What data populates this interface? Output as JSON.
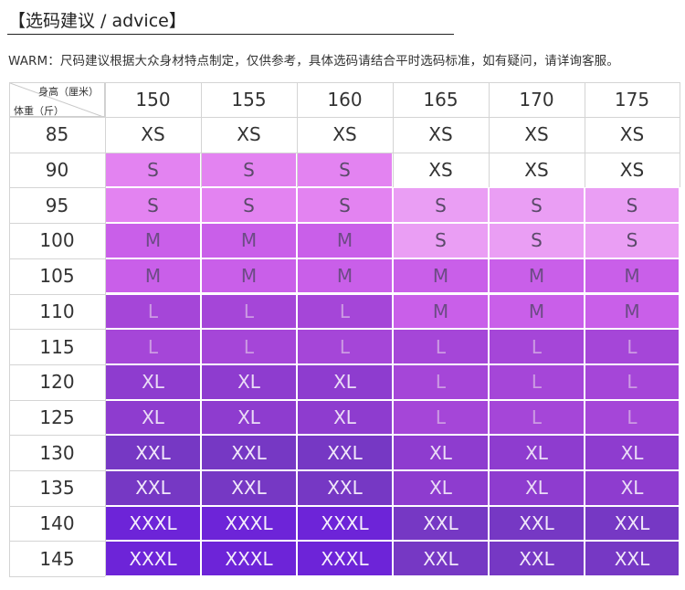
{
  "title": "【选码建议 / advice】",
  "note": "WARM：尺码建议根据大众身材特点制定，仅供参考，具体选码请结合平时选码标准，如有疑问，请详询客服。",
  "table": {
    "corner_height_label": "身高（厘米）",
    "corner_weight_label": "体重（斤）",
    "heights": [
      "150",
      "155",
      "160",
      "165",
      "170",
      "175"
    ],
    "rows": [
      {
        "weight": "85",
        "sizes": [
          "XS",
          "XS",
          "XS",
          "XS",
          "XS",
          "XS"
        ]
      },
      {
        "weight": "90",
        "sizes": [
          "S",
          "S",
          "S",
          "XS",
          "XS",
          "XS"
        ]
      },
      {
        "weight": "95",
        "sizes": [
          "S",
          "S",
          "S",
          "S",
          "S",
          "S"
        ]
      },
      {
        "weight": "100",
        "sizes": [
          "M",
          "M",
          "M",
          "S",
          "S",
          "S"
        ]
      },
      {
        "weight": "105",
        "sizes": [
          "M",
          "M",
          "M",
          "M",
          "M",
          "M"
        ]
      },
      {
        "weight": "110",
        "sizes": [
          "L",
          "L",
          "L",
          "M",
          "M",
          "M"
        ]
      },
      {
        "weight": "115",
        "sizes": [
          "L",
          "L",
          "L",
          "L",
          "L",
          "L"
        ]
      },
      {
        "weight": "120",
        "sizes": [
          "XL",
          "XL",
          "XL",
          "L",
          "L",
          "L"
        ]
      },
      {
        "weight": "125",
        "sizes": [
          "XL",
          "XL",
          "XL",
          "L",
          "L",
          "L"
        ]
      },
      {
        "weight": "130",
        "sizes": [
          "XXL",
          "XXL",
          "XXL",
          "XL",
          "XL",
          "XL"
        ]
      },
      {
        "weight": "135",
        "sizes": [
          "XXL",
          "XXL",
          "XXL",
          "XL",
          "XL",
          "XL"
        ]
      },
      {
        "weight": "140",
        "sizes": [
          "XXXL",
          "XXXL",
          "XXXL",
          "XXL",
          "XXL",
          "XXL"
        ]
      },
      {
        "weight": "145",
        "sizes": [
          "XXXL",
          "XXXL",
          "XXXL",
          "XXL",
          "XXL",
          "XXL"
        ]
      }
    ]
  },
  "colors": {
    "XS": {
      "bg": "#ffffff",
      "fg": "#333333"
    },
    "S": {
      "bg": "#e383f1",
      "fg": "#5b4a6a"
    },
    "M": {
      "bg": "#c95fe9",
      "fg": "#6c4b85"
    },
    "L": {
      "bg": "#a546d8",
      "fg": "#cc9be3"
    },
    "XL": {
      "bg": "#8e3ccf",
      "fg": "#eadcf6"
    },
    "XXL": {
      "bg": "#7638c4",
      "fg": "#f1e8fa"
    },
    "XXXL": {
      "bg": "#6d24d8",
      "fg": "#f4eefc"
    },
    "S_light": {
      "bg": "#ea9ef4",
      "fg": "#5b4a6a"
    }
  }
}
